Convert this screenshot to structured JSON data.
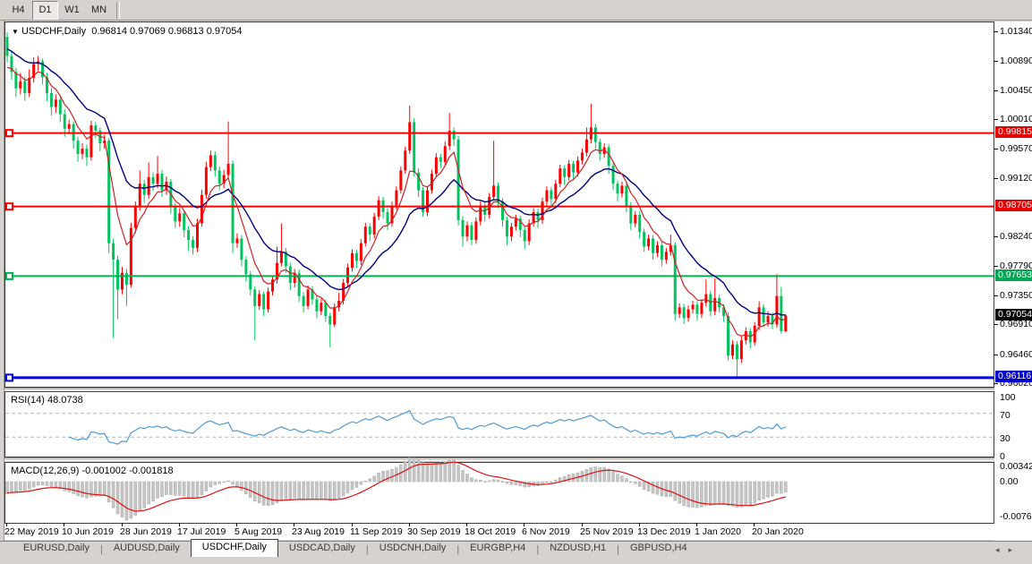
{
  "toolbar": {
    "buttons": [
      {
        "label": "H4",
        "active": false
      },
      {
        "label": "D1",
        "active": true
      },
      {
        "label": "W1",
        "active": false
      },
      {
        "label": "MN",
        "active": false
      }
    ]
  },
  "chart": {
    "title": "USDCHF,Daily",
    "ohlc_text": "0.96814 0.97069 0.96813 0.97054",
    "colors": {
      "up": "#ff0000",
      "down": "#00c45e",
      "ma_fast": "#cc2222",
      "ma_slow": "#000080",
      "rsi_line": "#4f9bd5",
      "macd_hist": "#c6c6c6",
      "macd_signal": "#dd1111",
      "bg": "#ffffff"
    },
    "price_axis_labels": [
      {
        "text": "1.01340",
        "price": 1.0134
      },
      {
        "text": "1.00890",
        "price": 1.0089
      },
      {
        "text": "1.00450",
        "price": 1.0045
      },
      {
        "text": "1.00010",
        "price": 1.0001
      },
      {
        "text": "0.99570",
        "price": 0.9957
      },
      {
        "text": "0.99120",
        "price": 0.9912
      },
      {
        "text": "0.98240",
        "price": 0.9824
      },
      {
        "text": "0.97790",
        "price": 0.9779
      },
      {
        "text": "0.97350",
        "price": 0.9735
      },
      {
        "text": "0.96910",
        "price": 0.9691
      },
      {
        "text": "0.96460",
        "price": 0.9646
      },
      {
        "text": "0.96020",
        "price": 0.9602
      }
    ],
    "price_tags": [
      {
        "text": "0.99815",
        "price": 0.99815,
        "bg": "#e60000",
        "line": "#ff0000",
        "line_width": 2
      },
      {
        "text": "0.98705",
        "price": 0.98705,
        "bg": "#e60000",
        "line": "#ff0000",
        "line_width": 2
      },
      {
        "text": "0.97653",
        "price": 0.97653,
        "bg": "#00a651",
        "line": "#00b050",
        "line_width": 2
      },
      {
        "text": "0.97054",
        "price": 0.97054,
        "bg": "#000000",
        "line": null,
        "line_width": 0
      },
      {
        "text": "0.96116",
        "price": 0.96116,
        "bg": "#0000cc",
        "line": "#0000e6",
        "line_width": 3
      }
    ]
  },
  "chart_data": {
    "type": "candlestick",
    "symbol": "USDCHF",
    "timeframe": "Daily",
    "last_ohlc": {
      "open": 0.96814,
      "high": 0.97069,
      "low": 0.96813,
      "close": 0.97054
    },
    "y_range": [
      0.9602,
      1.0134
    ],
    "x_tick_labels": [
      "22 May 2019",
      "10 Jun 2019",
      "28 Jun 2019",
      "17 Jul 2019",
      "5 Aug 2019",
      "23 Aug 2019",
      "11 Sep 2019",
      "30 Sep 2019",
      "18 Oct 2019",
      "6 Nov 2019",
      "25 Nov 2019",
      "13 Dec 2019",
      "1 Jan 2020",
      "20 Jan 2020"
    ],
    "horizontal_levels": [
      {
        "price": 0.99815,
        "color": "red"
      },
      {
        "price": 0.98705,
        "color": "red"
      },
      {
        "price": 0.97653,
        "color": "green"
      },
      {
        "price": 0.96116,
        "color": "blue"
      }
    ],
    "candles": [
      [
        1.0127,
        1.0134,
        1.0088,
        1.0098
      ],
      [
        1.0098,
        1.0106,
        1.0062,
        1.0074
      ],
      [
        1.0074,
        1.008,
        1.0036,
        1.0049
      ],
      [
        1.0049,
        1.0072,
        1.004,
        1.006
      ],
      [
        1.006,
        1.0066,
        1.003,
        1.0042
      ],
      [
        1.0042,
        1.0078,
        1.0036,
        1.0065
      ],
      [
        1.0065,
        1.0096,
        1.0058,
        1.0086
      ],
      [
        1.0086,
        1.0098,
        1.0076,
        1.009
      ],
      [
        1.009,
        1.0094,
        1.0055,
        1.0066
      ],
      [
        1.0066,
        1.0072,
        1.003,
        1.0042
      ],
      [
        1.0042,
        1.005,
        1.0008,
        1.0021
      ],
      [
        1.0021,
        1.004,
        1.0012,
        1.0032
      ],
      [
        1.0032,
        1.0036,
        0.9998,
        1.001
      ],
      [
        1.001,
        1.0018,
        0.9976,
        0.9988
      ],
      [
        0.9988,
        1.0002,
        0.998,
        0.9995
      ],
      [
        0.9995,
        0.9999,
        0.9958,
        0.997
      ],
      [
        0.997,
        0.9976,
        0.9938,
        0.995
      ],
      [
        0.995,
        0.9966,
        0.9942,
        0.9958
      ],
      [
        0.9958,
        0.9964,
        0.9932,
        0.9945
      ],
      [
        0.9945,
        1.0,
        0.994,
        0.9993
      ],
      [
        0.9993,
        0.9998,
        0.9974,
        0.9985
      ],
      [
        0.9985,
        0.999,
        0.9954,
        0.9966
      ],
      [
        0.9966,
        0.9979,
        0.9958,
        0.997
      ],
      [
        0.997,
        0.9974,
        0.98,
        0.9815
      ],
      [
        0.9815,
        0.9822,
        0.9672,
        0.979
      ],
      [
        0.979,
        0.9796,
        0.97,
        0.9745
      ],
      [
        0.9745,
        0.9779,
        0.9738,
        0.977
      ],
      [
        0.977,
        0.9776,
        0.972,
        0.9752
      ],
      [
        0.9752,
        0.9846,
        0.9748,
        0.9838
      ],
      [
        0.9838,
        0.9878,
        0.983,
        0.987
      ],
      [
        0.987,
        0.9925,
        0.9864,
        0.9905
      ],
      [
        0.9905,
        0.9911,
        0.9876,
        0.9888
      ],
      [
        0.9888,
        0.9937,
        0.9882,
        0.9915
      ],
      [
        0.9915,
        0.9922,
        0.9894,
        0.9905
      ],
      [
        0.9905,
        0.9947,
        0.9898,
        0.992
      ],
      [
        0.992,
        0.9926,
        0.9885,
        0.9895
      ],
      [
        0.9895,
        0.9916,
        0.9888,
        0.9908
      ],
      [
        0.9908,
        0.9912,
        0.986,
        0.987
      ],
      [
        0.987,
        0.9876,
        0.9838,
        0.9848
      ],
      [
        0.9848,
        0.9868,
        0.984,
        0.986
      ],
      [
        0.986,
        0.9865,
        0.9824,
        0.9835
      ],
      [
        0.9835,
        0.9841,
        0.9803,
        0.982
      ],
      [
        0.982,
        0.9826,
        0.9798,
        0.9808
      ],
      [
        0.9808,
        0.9852,
        0.9802,
        0.9845
      ],
      [
        0.9845,
        0.9896,
        0.984,
        0.9888
      ],
      [
        0.9888,
        0.9938,
        0.9882,
        0.993
      ],
      [
        0.993,
        0.9955,
        0.9924,
        0.9948
      ],
      [
        0.9948,
        0.9954,
        0.9916,
        0.9925
      ],
      [
        0.9925,
        0.9931,
        0.9895,
        0.9905
      ],
      [
        0.9905,
        0.9926,
        0.9898,
        0.9918
      ],
      [
        0.9918,
        0.9999,
        0.9912,
        0.9935
      ],
      [
        0.9935,
        0.994,
        0.98,
        0.9815
      ],
      [
        0.9815,
        0.983,
        0.9808,
        0.9822
      ],
      [
        0.9822,
        0.9827,
        0.978,
        0.979
      ],
      [
        0.979,
        0.9795,
        0.9757,
        0.9768
      ],
      [
        0.9768,
        0.9773,
        0.9736,
        0.9745
      ],
      [
        0.9745,
        0.975,
        0.9668,
        0.972
      ],
      [
        0.972,
        0.9744,
        0.9714,
        0.9738
      ],
      [
        0.9738,
        0.9742,
        0.9705,
        0.9715
      ],
      [
        0.9715,
        0.9748,
        0.971,
        0.9742
      ],
      [
        0.9742,
        0.9766,
        0.9736,
        0.976
      ],
      [
        0.976,
        0.981,
        0.9754,
        0.9785
      ],
      [
        0.9785,
        0.9845,
        0.978,
        0.9802
      ],
      [
        0.9802,
        0.9808,
        0.977,
        0.978
      ],
      [
        0.978,
        0.9786,
        0.9744,
        0.9755
      ],
      [
        0.9755,
        0.9776,
        0.9748,
        0.977
      ],
      [
        0.977,
        0.9775,
        0.9726,
        0.9735
      ],
      [
        0.9735,
        0.9741,
        0.971,
        0.972
      ],
      [
        0.972,
        0.9751,
        0.9715,
        0.9745
      ],
      [
        0.9745,
        0.975,
        0.9722,
        0.973
      ],
      [
        0.973,
        0.9735,
        0.9702,
        0.9712
      ],
      [
        0.9712,
        0.9731,
        0.9706,
        0.9725
      ],
      [
        0.9725,
        0.973,
        0.9696,
        0.9705
      ],
      [
        0.9705,
        0.971,
        0.9658,
        0.9692
      ],
      [
        0.9692,
        0.9724,
        0.9688,
        0.9718
      ],
      [
        0.9718,
        0.974,
        0.9712,
        0.9728
      ],
      [
        0.9728,
        0.9761,
        0.9722,
        0.9755
      ],
      [
        0.9755,
        0.9784,
        0.975,
        0.9778
      ],
      [
        0.9778,
        0.9806,
        0.9772,
        0.98
      ],
      [
        0.98,
        0.9805,
        0.9778,
        0.9788
      ],
      [
        0.9788,
        0.9821,
        0.9782,
        0.9815
      ],
      [
        0.9815,
        0.9846,
        0.981,
        0.984
      ],
      [
        0.984,
        0.9845,
        0.9818,
        0.9828
      ],
      [
        0.9828,
        0.9861,
        0.9822,
        0.9855
      ],
      [
        0.9855,
        0.9886,
        0.985,
        0.988
      ],
      [
        0.988,
        0.9885,
        0.9852,
        0.9862
      ],
      [
        0.9862,
        0.9868,
        0.9835,
        0.9845
      ],
      [
        0.9845,
        0.9878,
        0.984,
        0.9872
      ],
      [
        0.9872,
        0.9901,
        0.9866,
        0.9895
      ],
      [
        0.9895,
        0.9931,
        0.989,
        0.9925
      ],
      [
        0.9925,
        0.9961,
        0.992,
        0.9955
      ],
      [
        0.9955,
        1.0023,
        0.995,
        0.9998
      ],
      [
        0.9998,
        1.0004,
        0.9916,
        0.9922
      ],
      [
        0.9922,
        0.9928,
        0.9885,
        0.9895
      ],
      [
        0.9895,
        0.99,
        0.9855,
        0.9862
      ],
      [
        0.9862,
        0.9901,
        0.9856,
        0.9895
      ],
      [
        0.9895,
        0.9926,
        0.989,
        0.992
      ],
      [
        0.992,
        0.9951,
        0.9915,
        0.9945
      ],
      [
        0.9945,
        0.995,
        0.9928,
        0.9938
      ],
      [
        0.9938,
        0.9969,
        0.9932,
        0.9962
      ],
      [
        0.9962,
        1.0012,
        0.9956,
        0.9985
      ],
      [
        0.9985,
        0.999,
        0.9962,
        0.9972
      ],
      [
        0.9972,
        0.9977,
        0.9842,
        0.985
      ],
      [
        0.985,
        0.9856,
        0.981,
        0.9825
      ],
      [
        0.9825,
        0.9848,
        0.9818,
        0.9842
      ],
      [
        0.9842,
        0.9847,
        0.9812,
        0.982
      ],
      [
        0.982,
        0.9854,
        0.9814,
        0.9848
      ],
      [
        0.9848,
        0.9878,
        0.9842,
        0.9872
      ],
      [
        0.9872,
        0.9877,
        0.9848,
        0.9858
      ],
      [
        0.9858,
        0.9891,
        0.9852,
        0.9885
      ],
      [
        0.9885,
        0.997,
        0.988,
        0.9902
      ],
      [
        0.9902,
        0.9907,
        0.9868,
        0.9878
      ],
      [
        0.9878,
        0.9883,
        0.984,
        0.985
      ],
      [
        0.985,
        0.9855,
        0.9812,
        0.9825
      ],
      [
        0.9825,
        0.9846,
        0.9818,
        0.984
      ],
      [
        0.984,
        0.9858,
        0.9834,
        0.9852
      ],
      [
        0.9852,
        0.9857,
        0.9824,
        0.9835
      ],
      [
        0.9835,
        0.984,
        0.9806,
        0.9818
      ],
      [
        0.9818,
        0.9851,
        0.9812,
        0.9845
      ],
      [
        0.9845,
        0.9868,
        0.984,
        0.9862
      ],
      [
        0.9862,
        0.9867,
        0.9838,
        0.985
      ],
      [
        0.985,
        0.9884,
        0.9844,
        0.9878
      ],
      [
        0.9878,
        0.9901,
        0.9872,
        0.9895
      ],
      [
        0.9895,
        0.99,
        0.987,
        0.9882
      ],
      [
        0.9882,
        0.9911,
        0.9876,
        0.9905
      ],
      [
        0.9905,
        0.9934,
        0.99,
        0.9928
      ],
      [
        0.9928,
        0.9933,
        0.9903,
        0.9915
      ],
      [
        0.9915,
        0.9941,
        0.991,
        0.9935
      ],
      [
        0.9935,
        0.994,
        0.991,
        0.9922
      ],
      [
        0.9922,
        0.9946,
        0.9916,
        0.994
      ],
      [
        0.994,
        0.9958,
        0.9934,
        0.9952
      ],
      [
        0.9952,
        0.999,
        0.9946,
        0.9972
      ],
      [
        0.9972,
        1.0026,
        0.9966,
        0.999
      ],
      [
        0.999,
        0.9995,
        0.9958,
        0.9968
      ],
      [
        0.9968,
        0.9973,
        0.994,
        0.995
      ],
      [
        0.995,
        0.9966,
        0.9944,
        0.996
      ],
      [
        0.996,
        0.9965,
        0.992,
        0.9932
      ],
      [
        0.9932,
        0.9937,
        0.9895,
        0.9905
      ],
      [
        0.9905,
        0.991,
        0.9878,
        0.989
      ],
      [
        0.989,
        0.9908,
        0.9884,
        0.9902
      ],
      [
        0.9902,
        0.9907,
        0.9862,
        0.9872
      ],
      [
        0.9872,
        0.9877,
        0.9835,
        0.9845
      ],
      [
        0.9845,
        0.9864,
        0.9839,
        0.9858
      ],
      [
        0.9858,
        0.9863,
        0.9822,
        0.9832
      ],
      [
        0.9832,
        0.9837,
        0.9802,
        0.981
      ],
      [
        0.981,
        0.9828,
        0.9804,
        0.9822
      ],
      [
        0.9822,
        0.9827,
        0.979,
        0.98
      ],
      [
        0.98,
        0.9818,
        0.9794,
        0.9812
      ],
      [
        0.9812,
        0.9817,
        0.978,
        0.979
      ],
      [
        0.979,
        0.9808,
        0.9784,
        0.9802
      ],
      [
        0.9802,
        0.9828,
        0.9796,
        0.9812
      ],
      [
        0.9812,
        0.9817,
        0.9698,
        0.9708
      ],
      [
        0.9708,
        0.9724,
        0.9702,
        0.9718
      ],
      [
        0.9718,
        0.9723,
        0.9693,
        0.9702
      ],
      [
        0.9702,
        0.9721,
        0.9696,
        0.9715
      ],
      [
        0.9715,
        0.9728,
        0.9709,
        0.9722
      ],
      [
        0.9722,
        0.9727,
        0.9698,
        0.9708
      ],
      [
        0.9708,
        0.9731,
        0.9702,
        0.9725
      ],
      [
        0.9725,
        0.976,
        0.9719,
        0.9738
      ],
      [
        0.9738,
        0.9743,
        0.9705,
        0.9712
      ],
      [
        0.9712,
        0.9762,
        0.9706,
        0.9732
      ],
      [
        0.9732,
        0.9737,
        0.971,
        0.9718
      ],
      [
        0.9718,
        0.9723,
        0.9696,
        0.9705
      ],
      [
        0.9705,
        0.971,
        0.9638,
        0.9645
      ],
      [
        0.9645,
        0.9668,
        0.964,
        0.9662
      ],
      [
        0.9662,
        0.9667,
        0.9613,
        0.964
      ],
      [
        0.964,
        0.9674,
        0.9634,
        0.9668
      ],
      [
        0.9668,
        0.9688,
        0.9662,
        0.9682
      ],
      [
        0.9682,
        0.9687,
        0.9656,
        0.9665
      ],
      [
        0.9665,
        0.9696,
        0.966,
        0.969
      ],
      [
        0.969,
        0.9727,
        0.9684,
        0.9718
      ],
      [
        0.9718,
        0.9723,
        0.9688,
        0.9695
      ],
      [
        0.9695,
        0.9712,
        0.9689,
        0.9705
      ],
      [
        0.9705,
        0.971,
        0.9685,
        0.9692
      ],
      [
        0.9692,
        0.9768,
        0.9687,
        0.9735
      ],
      [
        0.9735,
        0.9749,
        0.9678,
        0.9682
      ],
      [
        0.96814,
        0.97069,
        0.96813,
        0.97054
      ]
    ],
    "indicators": {
      "rsi": {
        "label": "RSI(14)",
        "current": 48.0738,
        "period": 14,
        "levels": [
          100,
          70,
          30,
          0
        ],
        "overbought": 70,
        "oversold": 30
      },
      "macd": {
        "label": "MACD(12,26,9)",
        "main": -0.001002,
        "signal": -0.001818,
        "axis_max": 0.003428,
        "axis_min": -0.007615
      }
    }
  },
  "rsi_panel": {
    "title": "RSI(14) 48.0738",
    "axis_labels": [
      {
        "text": "100",
        "v": 100
      },
      {
        "text": "70",
        "v": 70
      },
      {
        "text": "30",
        "v": 30
      },
      {
        "text": "0",
        "v": 0
      }
    ]
  },
  "macd_panel": {
    "title": "MACD(12,26,9) -0.001002 -0.001818",
    "axis_labels": [
      {
        "text": "0.003428",
        "v": 0.003428
      },
      {
        "text": "0.00",
        "v": 0
      },
      {
        "text": "-0.007615",
        "v": -0.007615
      }
    ]
  },
  "tabs": {
    "items": [
      {
        "label": "EURUSD,Daily",
        "active": false
      },
      {
        "label": "AUDUSD,Daily",
        "active": false
      },
      {
        "label": "USDCHF,Daily",
        "active": true
      },
      {
        "label": "USDCAD,Daily",
        "active": false
      },
      {
        "label": "USDCNH,Daily",
        "active": false
      },
      {
        "label": "EURGBP,H4",
        "active": false
      },
      {
        "label": "NZDUSD,H1",
        "active": false
      },
      {
        "label": "GBPUSD,H4",
        "active": false
      }
    ],
    "scroll_left_icon": "◂",
    "scroll_right_icon": "▸"
  }
}
